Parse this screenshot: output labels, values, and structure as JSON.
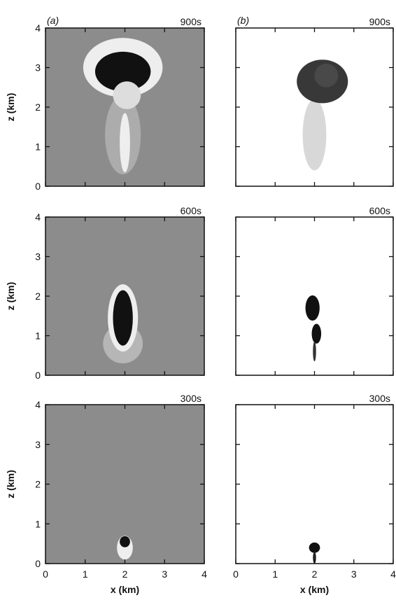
{
  "chart_data": [
    {
      "type": "field",
      "panel_label": "(a)",
      "annotation": "900s",
      "background": "#8c8c8c",
      "ylabel": "z (km)",
      "xlim": [
        0,
        4
      ],
      "ylim": [
        0,
        4
      ],
      "xticks": [
        0,
        1,
        2,
        3,
        4
      ],
      "yticks": [
        0,
        1,
        2,
        3,
        4
      ],
      "xtick_labels": false,
      "ytick_labels": true
    },
    {
      "type": "field",
      "panel_label": "(b)",
      "annotation": "900s",
      "background": "#ffffff",
      "xlim": [
        0,
        4
      ],
      "ylim": [
        0,
        4
      ],
      "xticks": [
        0,
        1,
        2,
        3,
        4
      ],
      "yticks": [
        0,
        1,
        2,
        3,
        4
      ],
      "xtick_labels": false,
      "ytick_labels": false
    },
    {
      "type": "field",
      "annotation": "600s",
      "background": "#8c8c8c",
      "ylabel": "z (km)",
      "xlim": [
        0,
        4
      ],
      "ylim": [
        0,
        4
      ],
      "xticks": [
        0,
        1,
        2,
        3,
        4
      ],
      "yticks": [
        0,
        1,
        2,
        3,
        4
      ],
      "xtick_labels": false,
      "ytick_labels": true
    },
    {
      "type": "field",
      "annotation": "600s",
      "background": "#ffffff",
      "xlim": [
        0,
        4
      ],
      "ylim": [
        0,
        4
      ],
      "xticks": [
        0,
        1,
        2,
        3,
        4
      ],
      "yticks": [
        0,
        1,
        2,
        3,
        4
      ],
      "xtick_labels": false,
      "ytick_labels": false
    },
    {
      "type": "field",
      "annotation": "300s",
      "background": "#8c8c8c",
      "ylabel": "z (km)",
      "xlabel": "x (km)",
      "xlim": [
        0,
        4
      ],
      "ylim": [
        0,
        4
      ],
      "xticks": [
        0,
        1,
        2,
        3,
        4
      ],
      "yticks": [
        0,
        1,
        2,
        3,
        4
      ],
      "xtick_labels": true,
      "ytick_labels": true
    },
    {
      "type": "field",
      "annotation": "300s",
      "background": "#ffffff",
      "xlabel": "x (km)",
      "xlim": [
        0,
        4
      ],
      "ylim": [
        0,
        4
      ],
      "xticks": [
        0,
        1,
        2,
        3,
        4
      ],
      "yticks": [
        0,
        1,
        2,
        3,
        4
      ],
      "xtick_labels": true,
      "ytick_labels": false
    }
  ]
}
